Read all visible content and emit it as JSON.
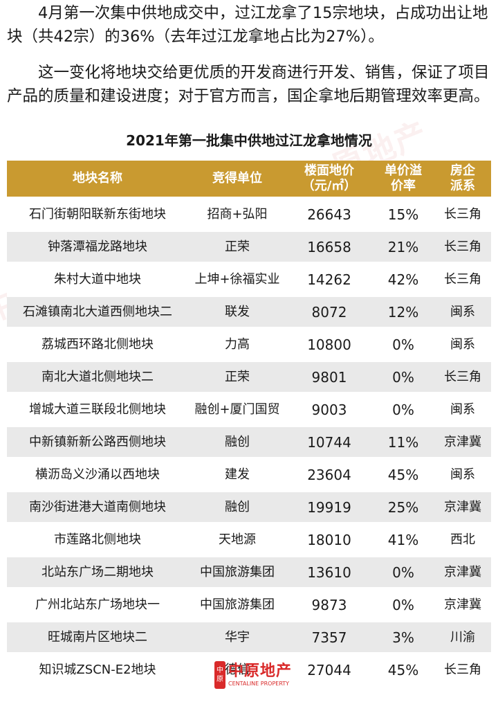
{
  "paragraphs": [
    "4月第一次集中供地成交中，过江龙拿了15宗地块，占成功出让地块（共42宗）的36%（去年过江龙拿地占比为27%）。",
    "这一变化将地块交给更优质的开发商进行开发、销售，保证了项目产品的质量和建设进度；对于官方而言，国企拿地后期管理效率更高。"
  ],
  "table": {
    "title": "2021年第一批集中供地过江龙拿地情况",
    "headers": [
      "地块名称",
      "竞得单位",
      "楼面地价（元/㎡）",
      "单价溢价率",
      "房企派系"
    ],
    "rows": [
      [
        "石门街朝阳联新东街地块",
        "招商+弘阳",
        "26643",
        "15%",
        "长三角"
      ],
      [
        "钟落潭福龙路地块",
        "正荣",
        "16658",
        "21%",
        "长三角"
      ],
      [
        "朱村大道中地块",
        "上坤+徐福实业",
        "14262",
        "42%",
        "长三角"
      ],
      [
        "石滩镇南北大道西侧地块二",
        "联发",
        "8072",
        "12%",
        "闽系"
      ],
      [
        "荔城西环路北侧地块",
        "力高",
        "10800",
        "0%",
        "闽系"
      ],
      [
        "南北大道北侧地块二",
        "正荣",
        "9801",
        "0%",
        "长三角"
      ],
      [
        "增城大道三联段北侧地块",
        "融创+厦门国贸",
        "9003",
        "0%",
        "闽系"
      ],
      [
        "中新镇新新公路西侧地块",
        "融创",
        "10744",
        "11%",
        "京津冀"
      ],
      [
        "横沥岛义沙涌以西地块",
        "建发",
        "23604",
        "45%",
        "闽系"
      ],
      [
        "南沙街进港大道南侧地块",
        "融创",
        "19919",
        "25%",
        "京津冀"
      ],
      [
        "市莲路北侧地块",
        "天地源",
        "18010",
        "41%",
        "西北"
      ],
      [
        "北站东广场二期地块",
        "中国旅游集团",
        "13610",
        "0%",
        "京津冀"
      ],
      [
        "广州北站东广场地块一",
        "中国旅游集团",
        "9873",
        "0%",
        "京津冀"
      ],
      [
        "旺城南片区地块二",
        "华宇",
        "7357",
        "3%",
        "川渝"
      ],
      [
        "知识城ZSCN-E2地块",
        "德信",
        "27044",
        "45%",
        "长三角"
      ]
    ]
  },
  "watermark": {
    "cn": "中原地产",
    "en": "CENTALINE PROPERTY",
    "mark": "中原"
  },
  "colors": {
    "header_bg": "#c99a30",
    "stripe": "#e9e9e9",
    "brand_red": "#d92a2a"
  }
}
